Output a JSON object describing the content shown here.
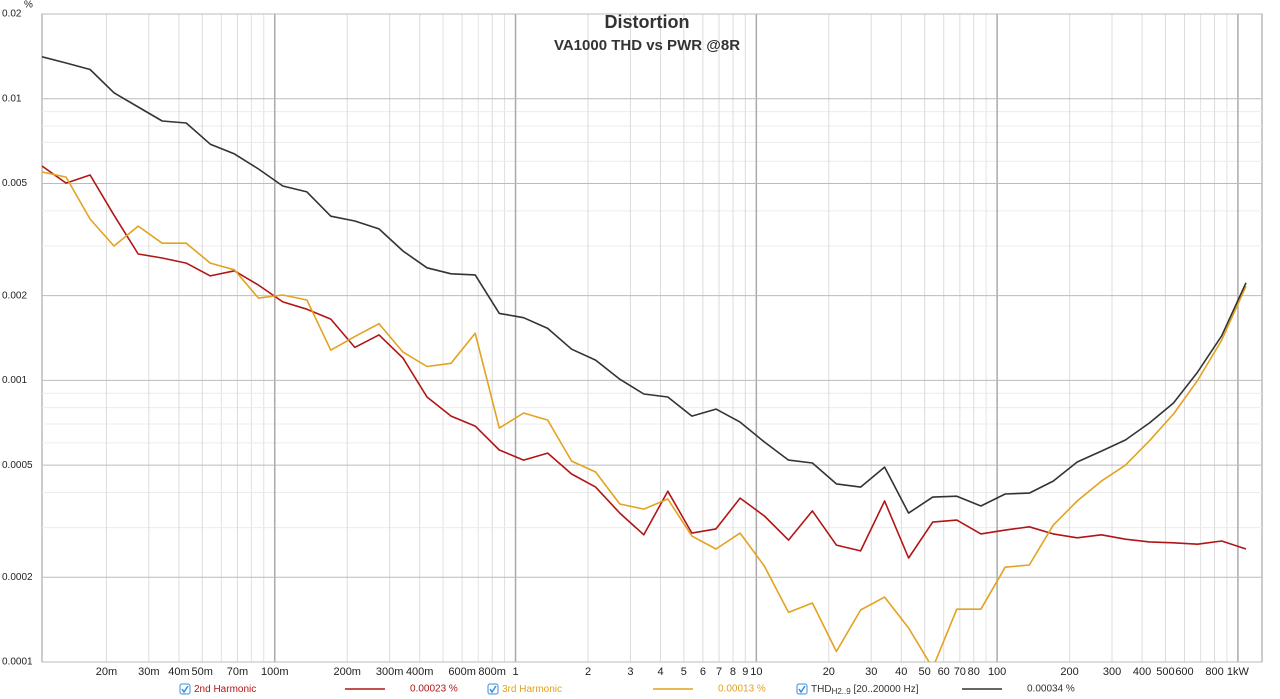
{
  "chart_data": {
    "type": "line",
    "title": "Distortion",
    "subtitle": "VA1000 THD vs PWR @8R",
    "y_unit": "%",
    "log_x": true,
    "log_y": true,
    "grid": true,
    "xlim": [
      0.0108,
      1259
    ],
    "ylim": [
      0.0001,
      0.02
    ],
    "xticks": [
      {
        "value": 0.02,
        "label": "20m"
      },
      {
        "value": 0.03,
        "label": "30m"
      },
      {
        "value": 0.04,
        "label": "40m"
      },
      {
        "value": 0.05,
        "label": "50m"
      },
      {
        "value": 0.07,
        "label": "70m"
      },
      {
        "value": 0.1,
        "label": "100m"
      },
      {
        "value": 0.2,
        "label": "200m"
      },
      {
        "value": 0.3,
        "label": "300m"
      },
      {
        "value": 0.4,
        "label": "400m"
      },
      {
        "value": 0.6,
        "label": "600m"
      },
      {
        "value": 0.8,
        "label": "800m"
      },
      1,
      2,
      3,
      4,
      5,
      6,
      7,
      8,
      9,
      10,
      20,
      30,
      40,
      50,
      60,
      70,
      80,
      100,
      200,
      300,
      400,
      500,
      600,
      800,
      {
        "value": 1000,
        "label": "1kW"
      }
    ],
    "xminor_ticks": [
      0.06,
      0.08,
      0.09,
      0.5,
      0.7,
      0.9,
      90,
      700,
      900
    ],
    "yticks": [
      0.0001,
      0.0002,
      0.0005,
      0.001,
      0.002,
      0.005,
      0.01,
      0.02
    ],
    "yminor_ticks": [
      0.0003,
      0.0004,
      0.0006,
      0.0007,
      0.0008,
      0.0009,
      0.003,
      0.004,
      0.006,
      0.007,
      0.008,
      0.009
    ],
    "x": [
      0.0108,
      0.0136,
      0.0171,
      0.0215,
      0.0271,
      0.0341,
      0.0429,
      0.054,
      0.068,
      0.0856,
      0.108,
      0.136,
      0.171,
      0.215,
      0.271,
      0.341,
      0.429,
      0.54,
      0.68,
      0.856,
      1.08,
      1.36,
      1.71,
      2.15,
      2.71,
      3.41,
      4.29,
      5.4,
      6.8,
      8.56,
      10.8,
      13.6,
      17.1,
      21.5,
      27.1,
      34.1,
      42.9,
      54,
      68,
      85.6,
      108,
      136,
      171,
      215,
      271,
      341,
      429,
      540,
      680,
      856,
      1080
    ],
    "series": [
      {
        "name": "2nd Harmonic",
        "legend_value": "0.00023 %",
        "color": "#b21515",
        "values": [
          0.00577,
          0.00502,
          0.00536,
          0.00386,
          0.00281,
          0.00272,
          0.00261,
          0.00235,
          0.00245,
          0.00218,
          0.0019,
          0.00179,
          0.00165,
          0.00131,
          0.00145,
          0.0012,
          0.000873,
          0.000747,
          0.000688,
          0.000566,
          0.000521,
          0.000552,
          0.000465,
          0.000418,
          0.000338,
          0.000283,
          0.000404,
          0.000287,
          0.000297,
          0.000382,
          0.00033,
          0.000271,
          0.000344,
          0.00026,
          0.000248,
          0.000373,
          0.000234,
          0.000314,
          0.000319,
          0.000285,
          0.000294,
          0.000302,
          0.000285,
          0.000276,
          0.000283,
          0.000273,
          0.000267,
          0.000265,
          0.000262,
          0.000269,
          0.000252
        ]
      },
      {
        "name": "3rd Harmonic",
        "legend_value": "0.00013 %",
        "color": "#e3a21f",
        "values": [
          0.0055,
          0.00527,
          0.00374,
          0.003,
          0.00353,
          0.00307,
          0.00307,
          0.00261,
          0.00247,
          0.00196,
          0.00201,
          0.00193,
          0.00128,
          0.00143,
          0.00159,
          0.00126,
          0.00112,
          0.00115,
          0.00147,
          0.000677,
          0.000766,
          0.000723,
          0.000517,
          0.000473,
          0.000364,
          0.000349,
          0.000379,
          0.00028,
          0.000252,
          0.000287,
          0.000219,
          0.00015,
          0.000162,
          0.000109,
          0.000153,
          0.00017,
          0.000132,
          9.52e-05,
          0.000154,
          0.000154,
          0.000217,
          0.000221,
          0.000306,
          0.000373,
          0.000439,
          0.0005,
          0.00061,
          0.00076,
          0.001,
          0.00139,
          0.00216
        ]
      },
      {
        "name": "THD",
        "name_sub": "H2..9",
        "name_suffix": "[20..20000 Hz]",
        "legend_value": "0.00034 %",
        "color": "#333333",
        "values": [
          0.0141,
          0.0134,
          0.0127,
          0.0105,
          0.00935,
          0.00834,
          0.0082,
          0.0069,
          0.00637,
          0.00563,
          0.0049,
          0.00467,
          0.00383,
          0.00368,
          0.00345,
          0.00288,
          0.00251,
          0.00239,
          0.00237,
          0.00173,
          0.00167,
          0.00153,
          0.00129,
          0.00118,
          0.00101,
          0.000895,
          0.000873,
          0.000747,
          0.000791,
          0.000711,
          0.000604,
          0.000521,
          0.000509,
          0.000429,
          0.000418,
          0.000492,
          0.000338,
          0.000385,
          0.000388,
          0.000358,
          0.000395,
          0.000398,
          0.000439,
          0.000513,
          0.000561,
          0.000614,
          0.000706,
          0.000831,
          0.00107,
          0.00144,
          0.00222
        ]
      }
    ]
  }
}
